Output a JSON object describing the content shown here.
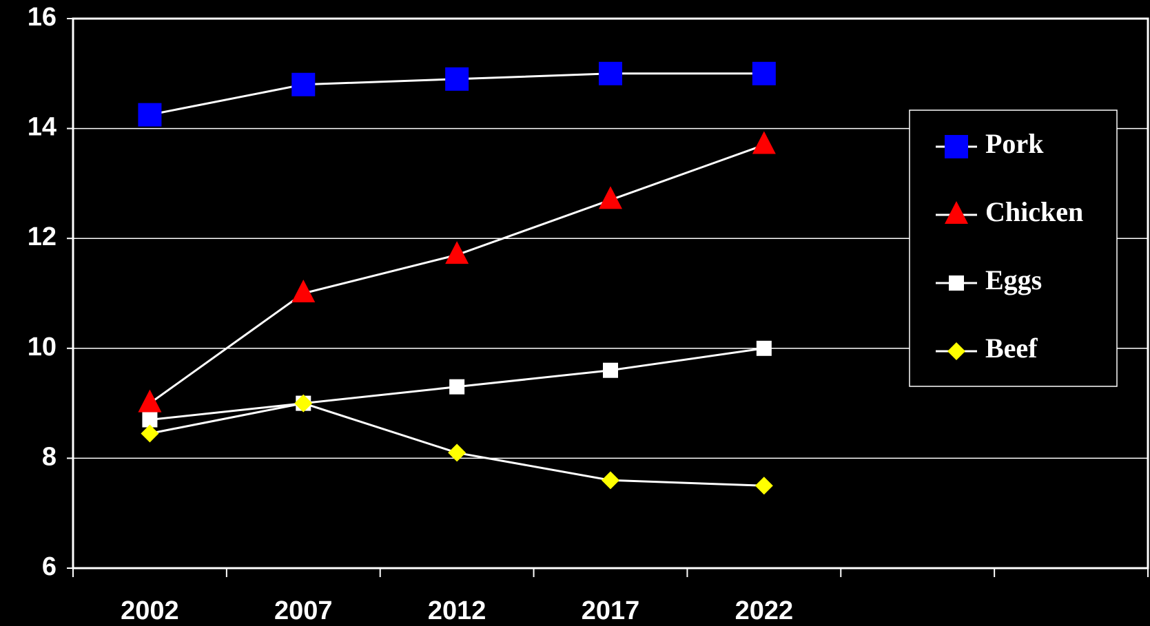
{
  "chart_data": {
    "type": "line",
    "categories": [
      "2002",
      "2007",
      "2012",
      "2017",
      "2022",
      null,
      null
    ],
    "series": [
      {
        "name": "Pork",
        "color": "#0000ff",
        "marker": "square",
        "values": [
          14.25,
          14.8,
          14.9,
          15.0,
          15.0,
          null,
          null
        ]
      },
      {
        "name": "Chicken",
        "color": "#ff0000",
        "marker": "triangle",
        "values": [
          9.0,
          11.0,
          11.7,
          12.7,
          13.7,
          null,
          null
        ]
      },
      {
        "name": "Eggs",
        "color": "#ffffff",
        "marker": "small-square",
        "values": [
          8.7,
          9.0,
          9.3,
          9.6,
          10.0,
          null,
          null
        ]
      },
      {
        "name": "Beef",
        "color": "#ffff00",
        "marker": "diamond",
        "values": [
          8.45,
          9.0,
          8.1,
          7.6,
          7.5,
          null,
          null
        ]
      }
    ],
    "ylim": [
      6,
      16
    ],
    "yticks": [
      6,
      8,
      10,
      12,
      14,
      16
    ],
    "grid": true,
    "legend": "right"
  }
}
